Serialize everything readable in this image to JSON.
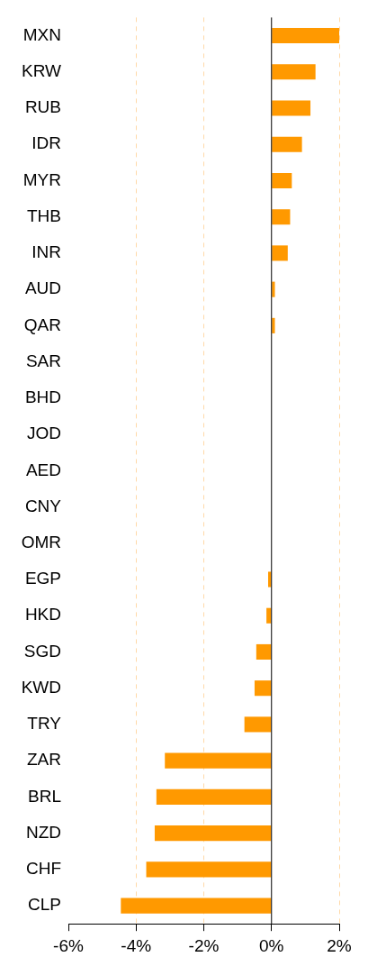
{
  "chart_data": {
    "type": "bar",
    "orientation": "horizontal",
    "categories": [
      "MXN",
      "KRW",
      "RUB",
      "IDR",
      "MYR",
      "THB",
      "INR",
      "AUD",
      "QAR",
      "SAR",
      "BHD",
      "JOD",
      "AED",
      "CNY",
      "OMR",
      "EGP",
      "HKD",
      "SGD",
      "KWD",
      "TRY",
      "ZAR",
      "BRL",
      "NZD",
      "CHF",
      "CLP"
    ],
    "values": [
      2.0,
      1.3,
      1.15,
      0.9,
      0.6,
      0.55,
      0.48,
      0.1,
      0.1,
      0,
      0,
      0,
      0,
      0,
      0,
      -0.1,
      -0.15,
      -0.45,
      -0.5,
      -0.8,
      -3.15,
      -3.4,
      -3.45,
      -3.7,
      -4.45
    ],
    "color": "#ff9900",
    "xlim": [
      -6,
      2
    ],
    "xticks": [
      {
        "value": -6,
        "label": "-6%"
      },
      {
        "value": -4,
        "label": "-4%"
      },
      {
        "value": -2,
        "label": "-2%"
      },
      {
        "value": 0,
        "label": "0%"
      },
      {
        "value": 2,
        "label": "2%"
      }
    ],
    "grid": "x",
    "legend": false
  }
}
